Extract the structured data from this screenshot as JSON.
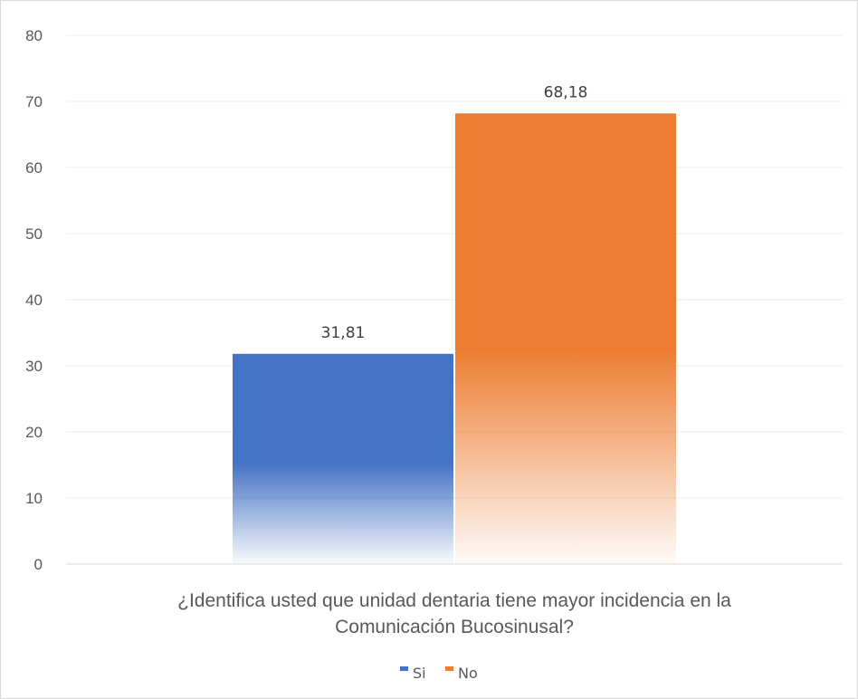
{
  "chart_data": {
    "type": "bar",
    "categories": [
      "¿Identifica usted que unidad dentaria tiene mayor incidencia en la Comunicación Bucosinusal?"
    ],
    "category_lines": [
      "¿Identifica usted que unidad dentaria tiene mayor incidencia en la",
      "Comunicación Bucosinusal?"
    ],
    "series": [
      {
        "name": "Si",
        "values": [
          31.81
        ],
        "label": "31,81",
        "color": "#4472c4"
      },
      {
        "name": "No",
        "values": [
          68.18
        ],
        "label": "68,18",
        "color": "#ed7d31"
      }
    ],
    "ylim": [
      0,
      80
    ],
    "yticks": [
      0,
      10,
      20,
      30,
      40,
      50,
      60,
      70,
      80
    ],
    "grid": true,
    "legend_position": "bottom",
    "title": "",
    "xlabel": "",
    "ylabel": ""
  }
}
